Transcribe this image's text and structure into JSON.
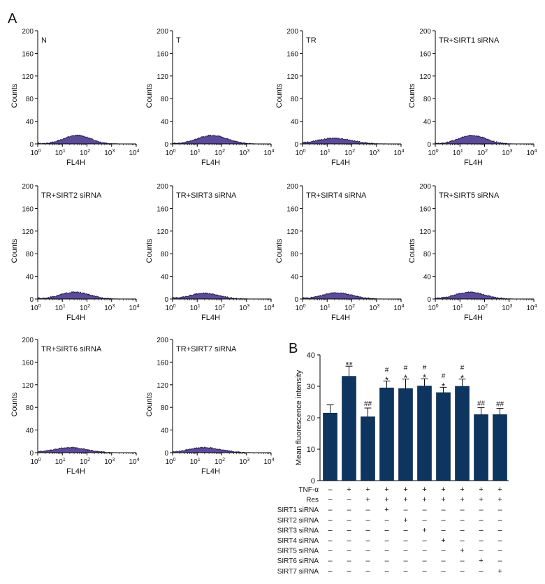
{
  "panel_a_label": "A",
  "panel_b_label": "B",
  "colors": {
    "histogram_fill": "#5b4b9a",
    "histogram_line": "#201a40",
    "bar_fill": "#0d3560",
    "axis": "#000000"
  },
  "histograms": {
    "ylabel": "Counts",
    "xlabel": "FL4H",
    "yticks": [
      "0",
      "40",
      "80",
      "120",
      "160",
      "200"
    ],
    "xticks": [
      {
        "base": "10",
        "exp": "0"
      },
      {
        "base": "10",
        "exp": "1"
      },
      {
        "base": "10",
        "exp": "2"
      },
      {
        "base": "10",
        "exp": "3"
      },
      {
        "base": "10",
        "exp": "4"
      }
    ],
    "panels": [
      {
        "label": "N",
        "peak_log": 1.6,
        "peak_height": 15,
        "width": 0.55
      },
      {
        "label": "T",
        "peak_log": 1.6,
        "peak_height": 15,
        "width": 0.6
      },
      {
        "label": "TR",
        "peak_log": 1.3,
        "peak_height": 10,
        "width": 0.7
      },
      {
        "label": "TR+SIRT1 siRNA",
        "peak_log": 1.5,
        "peak_height": 15,
        "width": 0.55
      },
      {
        "label": "TR+SIRT2 siRNA",
        "peak_log": 1.5,
        "peak_height": 12,
        "width": 0.6
      },
      {
        "label": "TR+SIRT3 siRNA",
        "peak_log": 1.3,
        "peak_height": 10,
        "width": 0.6
      },
      {
        "label": "TR+SIRT4 siRNA",
        "peak_log": 1.4,
        "peak_height": 11,
        "width": 0.6
      },
      {
        "label": "TR+SIRT5 siRNA",
        "peak_log": 1.4,
        "peak_height": 12,
        "width": 0.6
      },
      {
        "label": "TR+SIRT6 siRNA",
        "peak_log": 1.3,
        "peak_height": 9,
        "width": 0.65
      },
      {
        "label": "TR+SIRT7 siRNA",
        "peak_log": 1.3,
        "peak_height": 9,
        "width": 0.65
      }
    ]
  },
  "chart_data": {
    "type": "bar",
    "ylabel": "Mean fluorescence intensity",
    "ylim": [
      0,
      40
    ],
    "yticks": [
      "0",
      "10",
      "20",
      "30",
      "40"
    ],
    "values": [
      21.5,
      33.2,
      20.3,
      29.5,
      29.3,
      30.1,
      28.0,
      30.0,
      21.0,
      21.0
    ],
    "errors": [
      2.6,
      3.2,
      2.8,
      2.2,
      3.0,
      2.3,
      1.7,
      2.3,
      2.2,
      2.0
    ],
    "annotations": [
      [],
      [
        "**"
      ],
      [
        "##"
      ],
      [
        "*",
        "#"
      ],
      [
        "*",
        "#"
      ],
      [
        "*",
        "#"
      ],
      [
        "*",
        "#"
      ],
      [
        "*",
        "#"
      ],
      [
        "##"
      ],
      [
        "##"
      ]
    ],
    "conditions": [
      {
        "name": "TNF-α",
        "signs": [
          "–",
          "+",
          "+",
          "+",
          "+",
          "+",
          "+",
          "+",
          "+",
          "+"
        ]
      },
      {
        "name": "Res",
        "signs": [
          "–",
          "–",
          "+",
          "+",
          "+",
          "+",
          "+",
          "+",
          "+",
          "+"
        ]
      },
      {
        "name": "SIRT1 siRNA",
        "signs": [
          "–",
          "–",
          "–",
          "+",
          "–",
          "–",
          "–",
          "–",
          "–",
          "–"
        ]
      },
      {
        "name": "SIRT2 siRNA",
        "signs": [
          "–",
          "–",
          "–",
          "–",
          "+",
          "–",
          "–",
          "–",
          "–",
          "–"
        ]
      },
      {
        "name": "SIRT3 siRNA",
        "signs": [
          "–",
          "–",
          "–",
          "–",
          "–",
          "+",
          "–",
          "–",
          "–",
          "–"
        ]
      },
      {
        "name": "SIRT4 siRNA",
        "signs": [
          "–",
          "–",
          "–",
          "–",
          "–",
          "–",
          "+",
          "–",
          "–",
          "–"
        ]
      },
      {
        "name": "SIRT5 siRNA",
        "signs": [
          "–",
          "–",
          "–",
          "–",
          "–",
          "–",
          "–",
          "+",
          "–",
          "–"
        ]
      },
      {
        "name": "SIRT6 siRNA",
        "signs": [
          "–",
          "–",
          "–",
          "–",
          "–",
          "–",
          "–",
          "–",
          "+",
          "–"
        ]
      },
      {
        "name": "SIRT7 siRNA",
        "signs": [
          "–",
          "–",
          "–",
          "–",
          "–",
          "–",
          "–",
          "–",
          "–",
          "+"
        ]
      }
    ]
  }
}
